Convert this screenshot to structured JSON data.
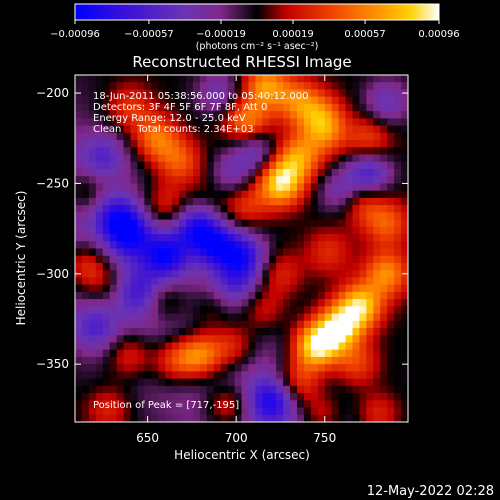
{
  "chart_data": {
    "type": "heatmap",
    "title": "Reconstructed RHESSI Image",
    "xlabel": "Heliocentric X (arcsec)",
    "ylabel": "Heliocentric Y (arcsec)",
    "xlim": [
      609,
      797
    ],
    "ylim": [
      -382,
      -190
    ],
    "x_ticks": [
      650,
      700,
      750
    ],
    "x_tick_labels": [
      "650",
      "700",
      "750"
    ],
    "y_ticks": [
      -200,
      -250,
      -300,
      -350
    ],
    "y_tick_labels": [
      "−200",
      "−250",
      "−300",
      "−350"
    ],
    "colorbar": {
      "range": [
        -0.00096,
        0.00096
      ],
      "ticks": [
        -0.00096,
        -0.00057,
        -0.00019,
        0.00019,
        0.00057,
        0.00096
      ],
      "tick_labels": [
        "−0.00096",
        "−0.00057",
        "−0.00019",
        "0.00019",
        "0.00057",
        "0.00096"
      ],
      "unit_label": "(photons cm⁻² s⁻¹ asec⁻²)",
      "colors": [
        "#0000ff",
        "#3a10d8",
        "#6a34b4",
        "#80288a",
        "#c00000",
        "#f04000",
        "#ff8c00",
        "#ffd000",
        "#ffffff"
      ]
    },
    "annotations": [
      "18-Jun-2011 05:38:56.000 to 05:40:12.000",
      "Detectors: 3F 4F 5F 6F 7F 8F, Att 0",
      "Energy Range: 12.0 - 25.0 keV",
      "Clean     Total counts: 2.34E+03"
    ],
    "peak_label": "Position of Peak = [717,-195]",
    "peak_position": [
      717,
      -195
    ],
    "blobs": [
      {
        "x": 655,
        "y": -225,
        "v": 0.00055
      },
      {
        "x": 668,
        "y": -238,
        "v": 0.00045
      },
      {
        "x": 640,
        "y": -208,
        "v": 0.00035
      },
      {
        "x": 706,
        "y": -216,
        "v": 0.0006
      },
      {
        "x": 717,
        "y": -196,
        "v": 0.00062
      },
      {
        "x": 735,
        "y": -205,
        "v": 0.0005
      },
      {
        "x": 748,
        "y": -212,
        "v": 0.0004
      },
      {
        "x": 725,
        "y": -250,
        "v": 0.00085
      },
      {
        "x": 735,
        "y": -236,
        "v": 0.0006
      },
      {
        "x": 750,
        "y": -222,
        "v": 0.00045
      },
      {
        "x": 775,
        "y": -226,
        "v": 0.0004
      },
      {
        "x": 770,
        "y": -260,
        "v": 0.0004
      },
      {
        "x": 705,
        "y": -262,
        "v": 0.00035
      },
      {
        "x": 660,
        "y": -262,
        "v": 0.00035
      },
      {
        "x": 690,
        "y": -252,
        "v": 0.0003
      },
      {
        "x": 615,
        "y": -255,
        "v": 0.0003
      },
      {
        "x": 615,
        "y": -295,
        "v": 0.00045
      },
      {
        "x": 625,
        "y": -305,
        "v": 0.0003
      },
      {
        "x": 640,
        "y": -345,
        "v": 0.0004
      },
      {
        "x": 660,
        "y": -315,
        "v": 0.00035
      },
      {
        "x": 685,
        "y": -320,
        "v": 0.00025
      },
      {
        "x": 680,
        "y": -345,
        "v": 0.00075
      },
      {
        "x": 665,
        "y": -348,
        "v": 0.0005
      },
      {
        "x": 698,
        "y": -340,
        "v": 0.00045
      },
      {
        "x": 695,
        "y": -373,
        "v": 0.00045
      },
      {
        "x": 725,
        "y": -300,
        "v": 0.0003
      },
      {
        "x": 715,
        "y": -320,
        "v": 0.0003
      },
      {
        "x": 745,
        "y": -340,
        "v": 0.00096
      },
      {
        "x": 758,
        "y": -330,
        "v": 0.00085
      },
      {
        "x": 770,
        "y": -318,
        "v": 0.0008
      },
      {
        "x": 785,
        "y": -300,
        "v": 0.0006
      },
      {
        "x": 735,
        "y": -360,
        "v": 0.0005
      },
      {
        "x": 768,
        "y": -350,
        "v": 0.0004
      },
      {
        "x": 785,
        "y": -272,
        "v": 0.00045
      },
      {
        "x": 752,
        "y": -288,
        "v": 0.0003
      },
      {
        "x": 748,
        "y": -378,
        "v": 0.00035
      },
      {
        "x": 628,
        "y": -375,
        "v": 0.0003
      },
      {
        "x": 780,
        "y": -378,
        "v": 0.00035
      },
      {
        "x": 640,
        "y": -278,
        "v": -0.00065
      },
      {
        "x": 660,
        "y": -290,
        "v": -0.0007
      },
      {
        "x": 678,
        "y": -275,
        "v": -0.0007
      },
      {
        "x": 690,
        "y": -285,
        "v": -0.00065
      },
      {
        "x": 695,
        "y": -248,
        "v": -0.0005
      },
      {
        "x": 710,
        "y": -232,
        "v": -0.00045
      },
      {
        "x": 705,
        "y": -290,
        "v": -0.0006
      },
      {
        "x": 632,
        "y": -268,
        "v": -0.0005
      },
      {
        "x": 625,
        "y": -235,
        "v": -0.0004
      },
      {
        "x": 775,
        "y": -244,
        "v": -0.0006
      },
      {
        "x": 760,
        "y": -255,
        "v": -0.0004
      },
      {
        "x": 720,
        "y": -370,
        "v": -0.0006
      },
      {
        "x": 700,
        "y": -305,
        "v": -0.0004
      },
      {
        "x": 785,
        "y": -205,
        "v": -0.0004
      },
      {
        "x": 620,
        "y": -330,
        "v": -0.0004
      },
      {
        "x": 645,
        "y": -310,
        "v": -0.0004
      },
      {
        "x": 690,
        "y": -200,
        "v": -0.00035
      }
    ]
  },
  "footer": {
    "timestamp": "12-May-2022 02:28"
  }
}
